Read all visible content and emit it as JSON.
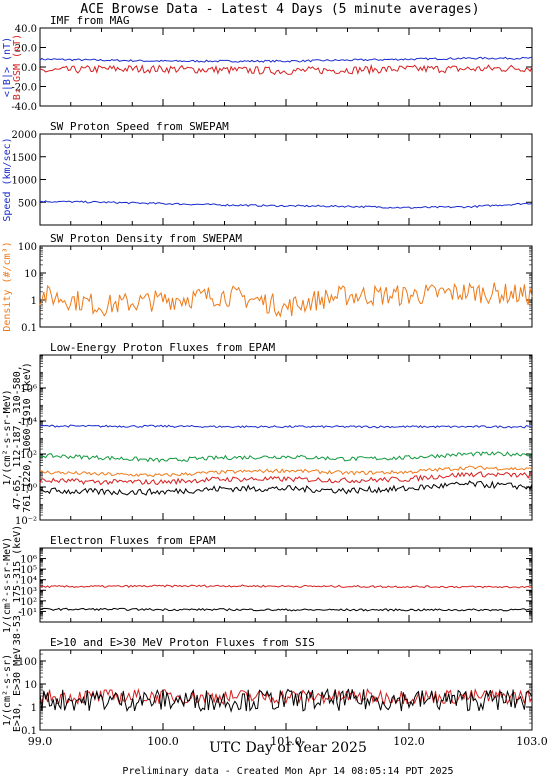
{
  "title": "ACE Browse Data - Latest 4 Days (5 minute averages)",
  "xlabel": "UTC Day of Year 2025",
  "footer": "Preliminary data - Created Mon Apr 14 08:05:14 PDT 2025",
  "colors": {
    "blue": "#1a2ccc",
    "red": "#d71f1f",
    "green": "#109a3c",
    "orange": "#ee7a18",
    "black": "#000000"
  },
  "chart_data": [
    {
      "id": "imf",
      "type": "line",
      "title": "IMF from MAG",
      "scale": "linear",
      "ylim": [
        -40,
        40
      ],
      "yticks": [
        -40,
        -20,
        0,
        20,
        40
      ],
      "ytick_labels": [
        "-40.0",
        "-20.0",
        "0.0",
        "20.0",
        "40.0"
      ],
      "ylabels": [
        {
          "text": "<|B|> (nT)",
          "color": "blue"
        },
        {
          "text": "B₂ GSM (nT)",
          "color": "red"
        }
      ],
      "x": [
        99.0,
        99.5,
        100.0,
        100.5,
        101.0,
        101.5,
        102.0,
        102.5,
        103.0
      ],
      "series": [
        {
          "name": "<|B|>",
          "color": "blue",
          "values": [
            8,
            7,
            6,
            6,
            6,
            7,
            8,
            9,
            9
          ],
          "noise": 1
        },
        {
          "name": "Bz GSM",
          "color": "red",
          "values": [
            -4,
            -2,
            -2,
            -3,
            -4,
            -3,
            -2,
            -2,
            -1
          ],
          "noise": 4
        }
      ]
    },
    {
      "id": "speed",
      "type": "line",
      "title": "SW Proton Speed from SWEPAM",
      "scale": "linear",
      "ylim": [
        0,
        2000
      ],
      "yticks": [
        500,
        1000,
        1500,
        2000
      ],
      "ytick_labels": [
        "500",
        "1000",
        "1500",
        "2000"
      ],
      "ylabels": [
        {
          "text": "Speed (km/sec)",
          "color": "blue"
        }
      ],
      "x": [
        99.0,
        99.5,
        100.0,
        100.5,
        101.0,
        101.5,
        102.0,
        102.5,
        103.0
      ],
      "series": [
        {
          "name": "Speed",
          "color": "blue",
          "values": [
            520,
            500,
            470,
            440,
            420,
            410,
            380,
            400,
            480
          ],
          "noise": 20
        }
      ]
    },
    {
      "id": "density",
      "type": "line",
      "title": "SW Proton Density from SWEPAM",
      "scale": "log",
      "ylim": [
        0.1,
        100
      ],
      "yticks": [
        0.1,
        1,
        10,
        100
      ],
      "ytick_labels": [
        "0.1",
        "1",
        "10",
        "100"
      ],
      "ylabels": [
        {
          "text": "Density (#/cm³)",
          "color": "orange"
        }
      ],
      "x": [
        99.0,
        99.5,
        100.0,
        100.5,
        101.0,
        101.5,
        102.0,
        102.5,
        103.0
      ],
      "series": [
        {
          "name": "Density",
          "color": "orange",
          "values": [
            1.5,
            0.6,
            1.0,
            1.5,
            0.5,
            1.5,
            1.5,
            2.0,
            1.5
          ],
          "noise": 0.25
        }
      ]
    },
    {
      "id": "protons",
      "type": "line",
      "title": "Low-Energy Proton Fluxes from EPAM",
      "scale": "log",
      "ylim": [
        0.01,
        100000000
      ],
      "yticks": [
        0.01,
        1,
        100,
        10000,
        1000000
      ],
      "ytick_labels": [
        "10⁻²",
        "10⁰",
        "10²",
        "10⁴",
        "10⁶"
      ],
      "ylabels": [
        {
          "text": "1/(cm²-s-sr-MeV)",
          "color": "black"
        },
        {
          "text": "47-65, 112-187, 310-580,",
          "color": "mixed"
        },
        {
          "text": "761-1220, 1060-1910 (keV)",
          "color": "mixed"
        }
      ],
      "x": [
        99.0,
        99.5,
        100.0,
        100.5,
        101.0,
        101.5,
        102.0,
        102.5,
        103.0
      ],
      "series": [
        {
          "name": "47-65",
          "color": "blue",
          "values": [
            5000,
            4800,
            4800,
            4500,
            4500,
            4500,
            4500,
            4500,
            4500
          ],
          "noise": 0.04
        },
        {
          "name": "112-187",
          "color": "green",
          "values": [
            80,
            60,
            40,
            60,
            70,
            50,
            60,
            100,
            100
          ],
          "noise": 0.08
        },
        {
          "name": "310-580",
          "color": "orange",
          "values": [
            8,
            6,
            5,
            8,
            10,
            7,
            8,
            15,
            12
          ],
          "noise": 0.07
        },
        {
          "name": "761-1220",
          "color": "red",
          "values": [
            2.5,
            2,
            2,
            3,
            3,
            2.5,
            3,
            6,
            5
          ],
          "noise": 0.1
        },
        {
          "name": "1060-1910",
          "color": "black",
          "values": [
            0.6,
            0.5,
            0.5,
            0.8,
            0.8,
            0.6,
            0.8,
            1.5,
            1.0
          ],
          "noise": 0.12
        }
      ]
    },
    {
      "id": "electrons",
      "type": "line",
      "title": "Electron Fluxes from EPAM",
      "scale": "log",
      "ylim": [
        1,
        10000000
      ],
      "yticks": [
        10,
        100,
        1000,
        10000,
        100000,
        1000000
      ],
      "ytick_labels": [
        "10¹",
        "10²",
        "10³",
        "10⁴",
        "10⁵",
        "10⁶"
      ],
      "ylabels": [
        {
          "text": "1/(cm²-s-sr-MeV)",
          "color": "black"
        },
        {
          "text": "38-53, 175-315 (keV)",
          "color": "mixed"
        }
      ],
      "x": [
        99.0,
        99.5,
        100.0,
        100.5,
        101.0,
        101.5,
        102.0,
        102.5,
        103.0
      ],
      "series": [
        {
          "name": "38-53",
          "color": "red",
          "values": [
            2200,
            2300,
            2500,
            2600,
            2400,
            2300,
            2200,
            2100,
            2000
          ],
          "noise": 0.06
        },
        {
          "name": "175-315",
          "color": "black",
          "values": [
            16,
            16,
            15,
            15,
            14,
            14,
            14,
            14,
            14
          ],
          "noise": 0.06
        }
      ]
    },
    {
      "id": "sis",
      "type": "line",
      "title": "E>10 and E>30 MeV Proton Fluxes from SIS",
      "scale": "log",
      "ylim": [
        0.1,
        300
      ],
      "yticks": [
        0.1,
        1,
        10,
        100
      ],
      "ytick_labels": [
        "0.1",
        "1",
        "10",
        "100"
      ],
      "ylabels": [
        {
          "text": "1/(cm²-s-sr)",
          "color": "black"
        },
        {
          "text": "E>10, E>30 MeV",
          "color": "mixed"
        }
      ],
      "x": [
        99.0,
        99.5,
        100.0,
        100.5,
        101.0,
        101.5,
        102.0,
        102.5,
        103.0
      ],
      "series": [
        {
          "name": "E>10",
          "color": "red",
          "values": [
            2.8,
            2.8,
            2.8,
            2.8,
            2.8,
            2.8,
            2.8,
            2.8,
            2.8
          ],
          "noise": 0.2
        },
        {
          "name": "E>30",
          "color": "black",
          "values": [
            2.0,
            2.0,
            2.0,
            2.0,
            2.0,
            2.0,
            2.0,
            2.0,
            2.0
          ],
          "noise": 0.3
        }
      ]
    }
  ],
  "xaxis": {
    "ticks": [
      99.0,
      100.0,
      101.0,
      102.0,
      103.0
    ],
    "labels": [
      "99.0",
      "100.0",
      "101.0",
      "102.0",
      "103.0"
    ]
  }
}
